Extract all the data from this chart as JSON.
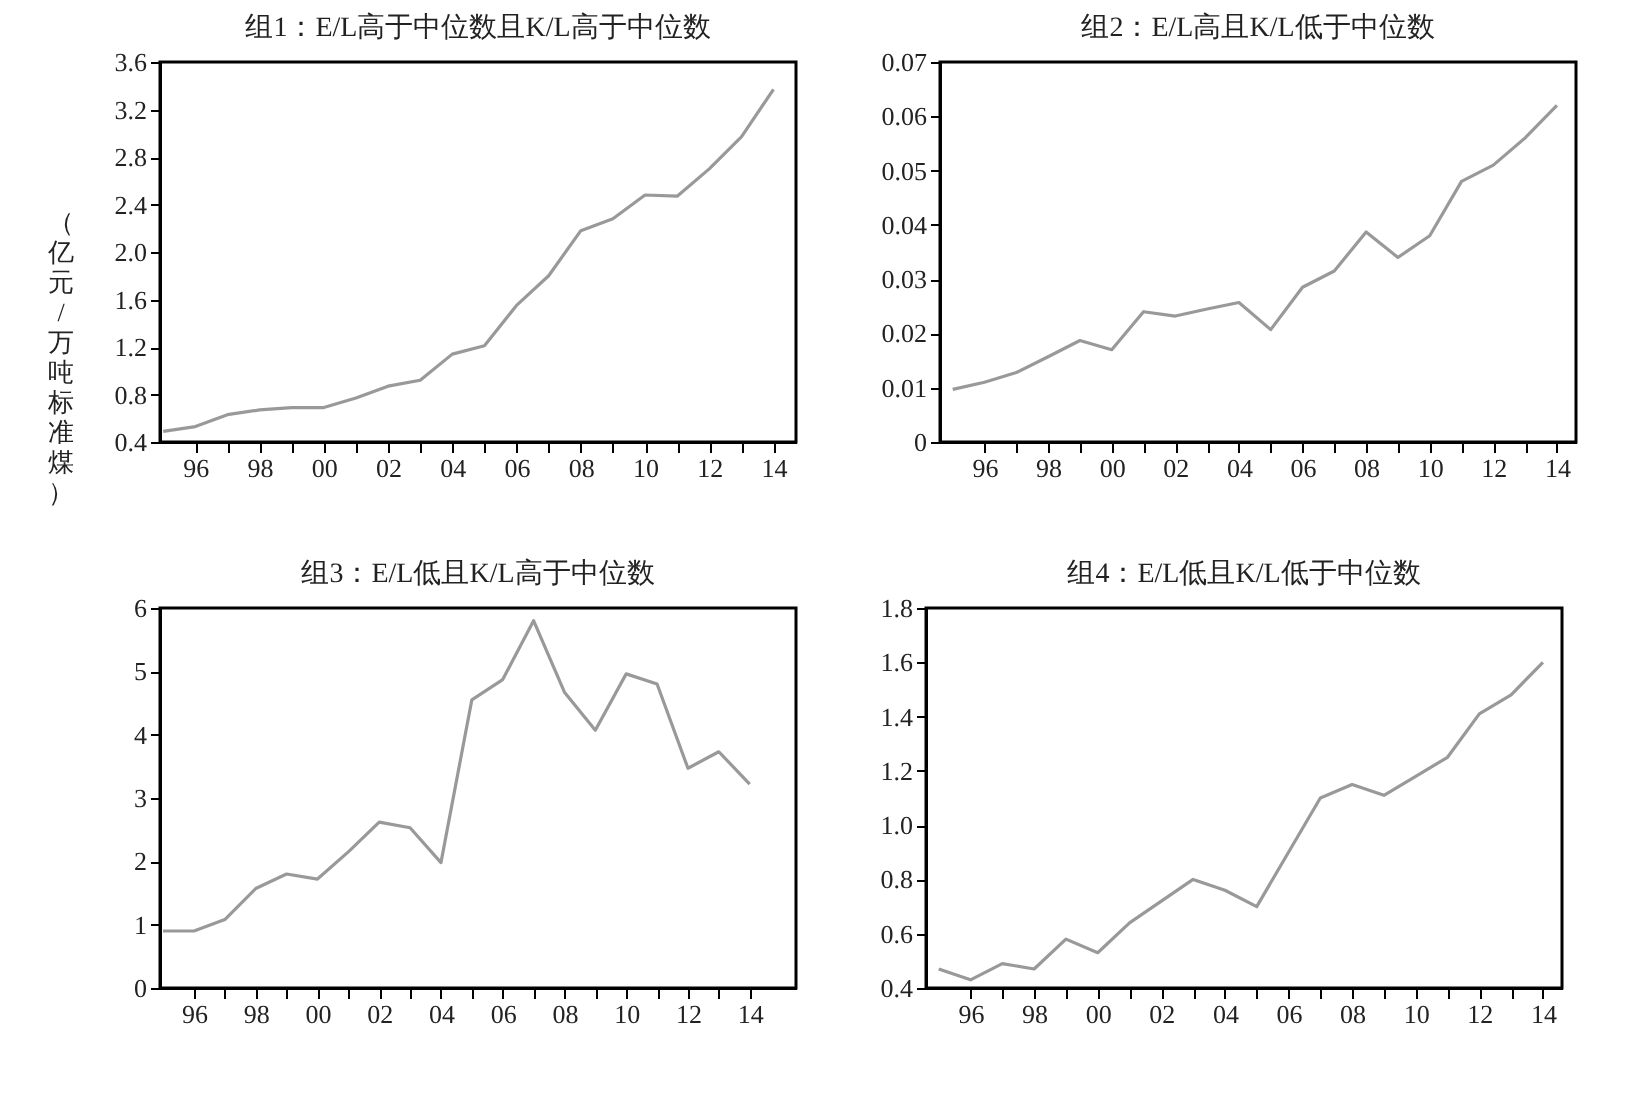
{
  "chart_data": [
    {
      "type": "line",
      "title": "组1：E/L高于中位数且K/L高于中位数",
      "ylabel": "（亿元/万吨标准煤）",
      "x": [
        1995,
        1996,
        1997,
        1998,
        1999,
        2000,
        2001,
        2002,
        2003,
        2004,
        2005,
        2006,
        2007,
        2008,
        2009,
        2010,
        2011,
        2012,
        2013,
        2014
      ],
      "series": [
        {
          "color": "#999999",
          "values": [
            0.49,
            0.53,
            0.63,
            0.67,
            0.69,
            0.69,
            0.77,
            0.87,
            0.92,
            1.14,
            1.21,
            1.55,
            1.8,
            2.18,
            2.28,
            2.48,
            2.47,
            2.7,
            2.97,
            3.37
          ]
        }
      ],
      "xlim": [
        1994.9,
        2014.7
      ],
      "xticks": [
        {
          "value": 1996,
          "label": "96"
        },
        {
          "value": 1997,
          "label": null
        },
        {
          "value": 1998,
          "label": "98"
        },
        {
          "value": 1999,
          "label": null
        },
        {
          "value": 2000,
          "label": "00"
        },
        {
          "value": 2001,
          "label": null
        },
        {
          "value": 2002,
          "label": "02"
        },
        {
          "value": 2003,
          "label": null
        },
        {
          "value": 2004,
          "label": "04"
        },
        {
          "value": 2005,
          "label": null
        },
        {
          "value": 2006,
          "label": "06"
        },
        {
          "value": 2007,
          "label": null
        },
        {
          "value": 2008,
          "label": "08"
        },
        {
          "value": 2009,
          "label": null
        },
        {
          "value": 2010,
          "label": "10"
        },
        {
          "value": 2011,
          "label": null
        },
        {
          "value": 2012,
          "label": "12"
        },
        {
          "value": 2013,
          "label": null
        },
        {
          "value": 2014,
          "label": "14"
        }
      ],
      "ylim": [
        0.4,
        3.6
      ],
      "yticks": [
        0.4,
        0.8,
        1.2,
        1.6,
        {
          "value": 2,
          "label": "2.0"
        },
        2.4,
        2.8,
        3.2,
        3.6
      ],
      "grid": false
    },
    {
      "type": "line",
      "title": "组2：E/L高且K/L低于中位数",
      "x": [
        1995,
        1996,
        1997,
        1998,
        1999,
        2000,
        2001,
        2002,
        2003,
        2004,
        2005,
        2006,
        2007,
        2008,
        2009,
        2010,
        2011,
        2012,
        2013,
        2014
      ],
      "series": [
        {
          "color": "#999999",
          "values": [
            0.0097,
            0.011,
            0.0128,
            0.0157,
            0.0187,
            0.017,
            0.024,
            0.0232,
            0.0245,
            0.0257,
            0.0207,
            0.0285,
            0.0315,
            0.0387,
            0.034,
            0.038,
            0.048,
            0.051,
            0.056,
            0.062
          ]
        }
      ],
      "xlim": [
        1994.6,
        2014.6
      ],
      "xticks": [
        {
          "value": 1996,
          "label": "96"
        },
        {
          "value": 1997,
          "label": null
        },
        {
          "value": 1998,
          "label": "98"
        },
        {
          "value": 1999,
          "label": null
        },
        {
          "value": 2000,
          "label": "00"
        },
        {
          "value": 2001,
          "label": null
        },
        {
          "value": 2002,
          "label": "02"
        },
        {
          "value": 2003,
          "label": null
        },
        {
          "value": 2004,
          "label": "04"
        },
        {
          "value": 2005,
          "label": null
        },
        {
          "value": 2006,
          "label": "06"
        },
        {
          "value": 2007,
          "label": null
        },
        {
          "value": 2008,
          "label": "08"
        },
        {
          "value": 2009,
          "label": null
        },
        {
          "value": 2010,
          "label": "10"
        },
        {
          "value": 2011,
          "label": null
        },
        {
          "value": 2012,
          "label": "12"
        },
        {
          "value": 2013,
          "label": null
        },
        {
          "value": 2014,
          "label": "14"
        }
      ],
      "ylim": [
        0,
        0.07
      ],
      "yticks": [
        {
          "value": 0,
          "label": "0"
        },
        0.01,
        0.02,
        0.03,
        0.04,
        0.05,
        0.06,
        0.07
      ],
      "grid": false
    },
    {
      "type": "line",
      "title": "组3：E/L低且K/L高于中位数",
      "x": [
        1995,
        1996,
        1997,
        1998,
        1999,
        2000,
        2001,
        2002,
        2003,
        2004,
        2005,
        2006,
        2007,
        2008,
        2009,
        2010,
        2011,
        2012,
        2013,
        2014
      ],
      "series": [
        {
          "color": "#999999",
          "values": [
            0.9,
            0.9,
            1.08,
            1.57,
            1.8,
            1.72,
            2.15,
            2.62,
            2.53,
            1.98,
            4.55,
            4.87,
            5.8,
            4.67,
            4.07,
            4.96,
            4.8,
            3.47,
            3.73,
            3.22
          ]
        }
      ],
      "xlim": [
        1994.9,
        2015.5
      ],
      "xticks": [
        {
          "value": 1996,
          "label": "96"
        },
        {
          "value": 1997,
          "label": null
        },
        {
          "value": 1998,
          "label": "98"
        },
        {
          "value": 1999,
          "label": null
        },
        {
          "value": 2000,
          "label": "00"
        },
        {
          "value": 2001,
          "label": null
        },
        {
          "value": 2002,
          "label": "02"
        },
        {
          "value": 2003,
          "label": null
        },
        {
          "value": 2004,
          "label": "04"
        },
        {
          "value": 2005,
          "label": null
        },
        {
          "value": 2006,
          "label": "06"
        },
        {
          "value": 2007,
          "label": null
        },
        {
          "value": 2008,
          "label": "08"
        },
        {
          "value": 2009,
          "label": null
        },
        {
          "value": 2010,
          "label": "10"
        },
        {
          "value": 2011,
          "label": null
        },
        {
          "value": 2012,
          "label": "12"
        },
        {
          "value": 2013,
          "label": null
        },
        {
          "value": 2014,
          "label": "14"
        }
      ],
      "ylim": [
        0,
        6
      ],
      "yticks": [
        0,
        1,
        2,
        3,
        4,
        5,
        6
      ],
      "grid": false
    },
    {
      "type": "line",
      "title": "组4：E/L低且K/L低于中位数",
      "x": [
        1995,
        1996,
        1997,
        1998,
        1999,
        2000,
        2001,
        2002,
        2003,
        2004,
        2005,
        2006,
        2007,
        2008,
        2009,
        2010,
        2011,
        2012,
        2013,
        2014
      ],
      "series": [
        {
          "color": "#999999",
          "values": [
            0.47,
            0.43,
            0.49,
            0.47,
            0.58,
            0.53,
            0.64,
            0.72,
            0.8,
            0.76,
            0.7,
            0.9,
            1.1,
            1.15,
            1.11,
            1.18,
            1.25,
            1.41,
            1.48,
            1.6
          ]
        }
      ],
      "xlim": [
        1994.6,
        2014.6
      ],
      "xticks": [
        {
          "value": 1996,
          "label": "96"
        },
        {
          "value": 1997,
          "label": null
        },
        {
          "value": 1998,
          "label": "98"
        },
        {
          "value": 1999,
          "label": null
        },
        {
          "value": 2000,
          "label": "00"
        },
        {
          "value": 2001,
          "label": null
        },
        {
          "value": 2002,
          "label": "02"
        },
        {
          "value": 2003,
          "label": null
        },
        {
          "value": 2004,
          "label": "04"
        },
        {
          "value": 2005,
          "label": null
        },
        {
          "value": 2006,
          "label": "06"
        },
        {
          "value": 2007,
          "label": null
        },
        {
          "value": 2008,
          "label": "08"
        },
        {
          "value": 2009,
          "label": null
        },
        {
          "value": 2010,
          "label": "10"
        },
        {
          "value": 2011,
          "label": null
        },
        {
          "value": 2012,
          "label": "12"
        },
        {
          "value": 2013,
          "label": null
        },
        {
          "value": 2014,
          "label": "14"
        }
      ],
      "ylim": [
        0.4,
        1.8
      ],
      "yticks": [
        0.4,
        0.6,
        0.8,
        {
          "value": 1,
          "label": "1.0"
        },
        1.2,
        1.4,
        1.6,
        1.8
      ],
      "grid": false
    }
  ]
}
